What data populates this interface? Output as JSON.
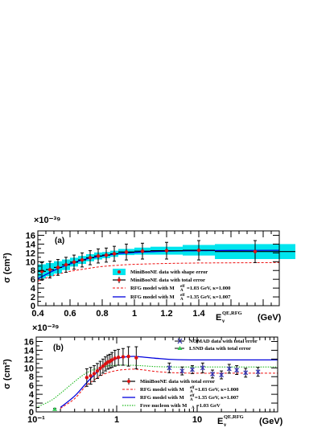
{
  "colors": {
    "shape_error_band": "#00e5ee",
    "minibooone_marker": "#dd1111",
    "rfg_103": "#ee1111",
    "rfg_135": "#0000dd",
    "free_nucleon": "#22bb22",
    "nomad": "#3333aa",
    "lsnd": "#33cc55",
    "frame": "#000000"
  },
  "chart_data": [
    {
      "type": "line",
      "panel_label": "(a)",
      "ylabel": "σ (cm²)",
      "y_exponent": "×10⁻³⁹",
      "xlabel_main": "E",
      "xlabel_sub": "ν",
      "xlabel_sup": "QE,RFG",
      "xlabel_unit": "(GeV)",
      "xscale": "linear",
      "xlim": [
        0.4,
        1.9
      ],
      "ylim": [
        0,
        17
      ],
      "xticks": [
        0.4,
        0.6,
        0.8,
        1,
        1.2,
        1.4
      ],
      "xtick_labels": [
        "0.4",
        "0.6",
        "0.8",
        "1",
        "1.2",
        "1.4"
      ],
      "yticks": [
        0,
        2,
        4,
        6,
        8,
        10,
        12,
        14,
        16
      ],
      "ytick_labels": [
        "0",
        "2",
        "4",
        "6",
        "8",
        "10",
        "12",
        "14",
        "16"
      ],
      "legend": [
        "MiniBooNE data with shape error",
        "MiniBooNE data with total error",
        "RFG model with M",
        "RFG model with M"
      ],
      "legend_sup": [
        "",
        "",
        "eff",
        "eff"
      ],
      "legend_sub": [
        "",
        "",
        "A",
        "A"
      ],
      "legend_tail": [
        "",
        "",
        "=1.03 GeV, κ=1.000",
        "=1.35 GeV, κ=1.007"
      ],
      "miniboone": {
        "x": [
          0.425,
          0.475,
          0.525,
          0.575,
          0.625,
          0.675,
          0.725,
          0.775,
          0.825,
          0.875,
          0.95,
          1.05,
          1.2,
          1.4,
          1.75
        ],
        "xerr": [
          0.025,
          0.025,
          0.025,
          0.025,
          0.025,
          0.025,
          0.025,
          0.025,
          0.025,
          0.025,
          0.05,
          0.05,
          0.1,
          0.1,
          0.25
        ],
        "y": [
          7.8,
          8.2,
          8.7,
          9.3,
          9.9,
          10.4,
          10.9,
          11.3,
          11.5,
          11.8,
          12.2,
          12.4,
          12.5,
          12.6,
          12.3
        ],
        "shape_err": [
          1.6,
          1.5,
          1.4,
          1.2,
          1.0,
          0.9,
          0.8,
          0.8,
          0.7,
          0.7,
          0.7,
          0.8,
          0.9,
          1.2,
          1.7
        ],
        "total_err": [
          2.0,
          1.9,
          1.8,
          1.7,
          1.6,
          1.6,
          1.6,
          1.6,
          1.6,
          1.7,
          1.8,
          1.8,
          1.9,
          2.2,
          2.5
        ]
      },
      "rfg_103": {
        "x": [
          0.4,
          0.5,
          0.6,
          0.7,
          0.8,
          0.9,
          1.0,
          1.2,
          1.4,
          1.6,
          1.9
        ],
        "y": [
          5.6,
          6.9,
          7.8,
          8.4,
          8.9,
          9.2,
          9.4,
          9.6,
          9.7,
          9.75,
          9.8
        ]
      },
      "rfg_135": {
        "x": [
          0.4,
          0.5,
          0.6,
          0.7,
          0.8,
          0.9,
          1.0,
          1.2,
          1.4,
          1.6,
          1.9
        ],
        "y": [
          6.1,
          8.0,
          9.5,
          10.6,
          11.3,
          11.8,
          12.1,
          12.4,
          12.5,
          12.55,
          12.6
        ]
      }
    },
    {
      "type": "line",
      "panel_label": "(b)",
      "ylabel": "σ (cm²)",
      "y_exponent": "×10⁻³⁹",
      "xlabel_main": "E",
      "xlabel_sub": "ν",
      "xlabel_sup": "QE,RFG",
      "xlabel_unit": "(GeV)",
      "xscale": "log",
      "xlim": [
        0.1,
        100
      ],
      "ylim": [
        0,
        17
      ],
      "xticks": [
        0.1,
        1,
        10
      ],
      "xtick_labels": [
        "10⁻¹",
        "1",
        "10"
      ],
      "yticks": [
        0,
        2,
        4,
        6,
        8,
        10,
        12,
        14,
        16
      ],
      "ytick_labels": [
        "0",
        "2",
        "4",
        "6",
        "8",
        "10",
        "12",
        "14",
        "16"
      ],
      "legend_top": [
        "NOMAD data with total error",
        "LSND data with total error"
      ],
      "legend": [
        "MiniBooNE data with total error",
        "RFG model with M",
        "RFG model with M",
        "Free nucleon with M"
      ],
      "legend_sup": [
        "",
        "eff",
        "eff",
        ""
      ],
      "legend_sub": [
        "",
        "A",
        "A",
        "A"
      ],
      "legend_tail": [
        "",
        "=1.03 GeV, κ=1.000",
        "=1.35 GeV, κ=1.007",
        "=1.03 GeV"
      ],
      "miniboone": {
        "x": [
          0.425,
          0.475,
          0.525,
          0.575,
          0.625,
          0.675,
          0.725,
          0.775,
          0.825,
          0.875,
          0.95,
          1.05,
          1.2,
          1.4,
          1.75
        ],
        "y": [
          7.8,
          8.2,
          8.7,
          9.3,
          9.9,
          10.4,
          10.9,
          11.3,
          11.5,
          11.8,
          12.2,
          12.4,
          12.5,
          12.6,
          12.3
        ],
        "total_err": [
          2.0,
          1.9,
          1.8,
          1.7,
          1.6,
          1.6,
          1.6,
          1.6,
          1.6,
          1.7,
          1.8,
          1.8,
          1.9,
          2.2,
          2.5
        ]
      },
      "nomad": {
        "x": [
          4.5,
          6.5,
          8.7,
          11.7,
          15.5,
          20,
          25,
          31,
          40,
          57
        ],
        "y": [
          10.0,
          9.3,
          9.6,
          10.0,
          8.6,
          8.4,
          9.8,
          9.5,
          8.9,
          9.1
        ],
        "err": [
          1.1,
          0.9,
          0.9,
          1.1,
          0.9,
          0.9,
          1.0,
          1.0,
          1.0,
          1.0
        ]
      },
      "lsnd": {
        "x": [
          0.17
        ],
        "y": [
          0.6
        ],
        "err": [
          0.2
        ]
      },
      "rfg_103": {
        "x": [
          0.2,
          0.3,
          0.4,
          0.5,
          0.7,
          1.0,
          1.5,
          2,
          3,
          5,
          10,
          30,
          100
        ],
        "y": [
          0.8,
          3.0,
          5.6,
          7.0,
          8.6,
          9.4,
          9.7,
          9.6,
          9.2,
          8.9,
          8.8,
          8.8,
          8.8
        ]
      },
      "rfg_135": {
        "x": [
          0.2,
          0.3,
          0.4,
          0.5,
          0.7,
          1.0,
          1.5,
          2,
          3,
          5,
          10,
          30,
          100
        ],
        "y": [
          1.0,
          3.6,
          6.1,
          8.0,
          10.6,
          12.1,
          12.6,
          12.5,
          12.2,
          11.9,
          11.8,
          11.8,
          11.8
        ]
      },
      "free_nucleon": {
        "x": [
          0.1,
          0.15,
          0.2,
          0.3,
          0.4,
          0.5,
          0.7,
          1.0,
          1.5,
          2,
          3,
          5,
          10,
          30,
          100
        ],
        "y": [
          1.0,
          2.5,
          4.2,
          6.9,
          8.6,
          9.5,
          10.3,
          10.6,
          10.6,
          10.5,
          10.3,
          10.2,
          10.2,
          10.2,
          10.2
        ]
      },
      "rfg_103_tail": {
        "x": [
          1.8,
          3,
          5,
          10,
          30,
          100
        ],
        "y": [
          9.7,
          9.4,
          9.1,
          9.0,
          9.0,
          9.0
        ]
      }
    }
  ]
}
